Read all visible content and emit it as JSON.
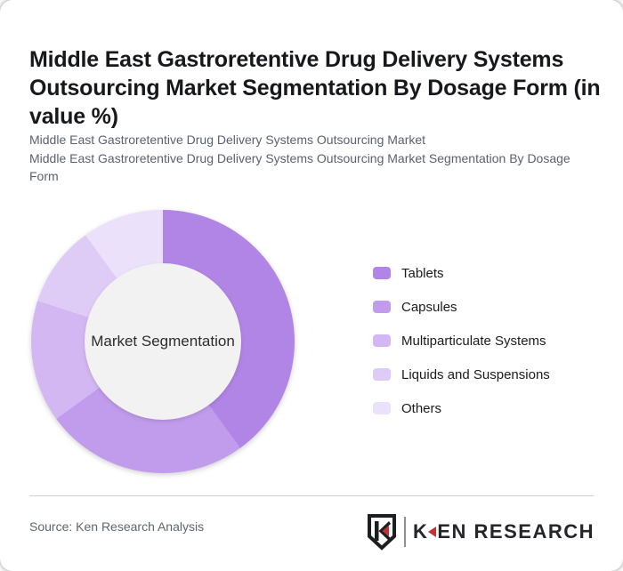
{
  "header": {
    "title": "Middle East Gastroretentive Drug Delivery Systems Outsourcing Market Segmentation By Dosage Form (in value %)",
    "subtitle_line1": "Middle East Gastroretentive Drug Delivery Systems Outsourcing Market",
    "subtitle_line2": "Middle East Gastroretentive Drug Delivery Systems Outsourcing Market Segmentation By Dosage Form"
  },
  "chart_data": {
    "type": "pie",
    "subtype": "donut",
    "unit": "value %",
    "center_label": "Market Segmentation",
    "start_angle_deg": 0,
    "direction": "clockwise",
    "legend_position": "right",
    "hole_color": "#f2f2f2",
    "series": [
      {
        "name": "Tablets",
        "value": 40,
        "color": "#b185e5"
      },
      {
        "name": "Capsules",
        "value": 25,
        "color": "#c19cec"
      },
      {
        "name": "Multiparticulate Systems",
        "value": 15,
        "color": "#d3b7f2"
      },
      {
        "name": "Liquids and Suspensions",
        "value": 10,
        "color": "#dfccf6"
      },
      {
        "name": "Others",
        "value": 10,
        "color": "#ebe1fa"
      }
    ]
  },
  "footer": {
    "source": "Source: Ken Research Analysis",
    "logo": {
      "shield_letter": "K",
      "brand_first_letter": "K",
      "brand_rest": "EN RESEARCH",
      "accent_color": "#c53030",
      "text_color": "#24262c"
    }
  }
}
